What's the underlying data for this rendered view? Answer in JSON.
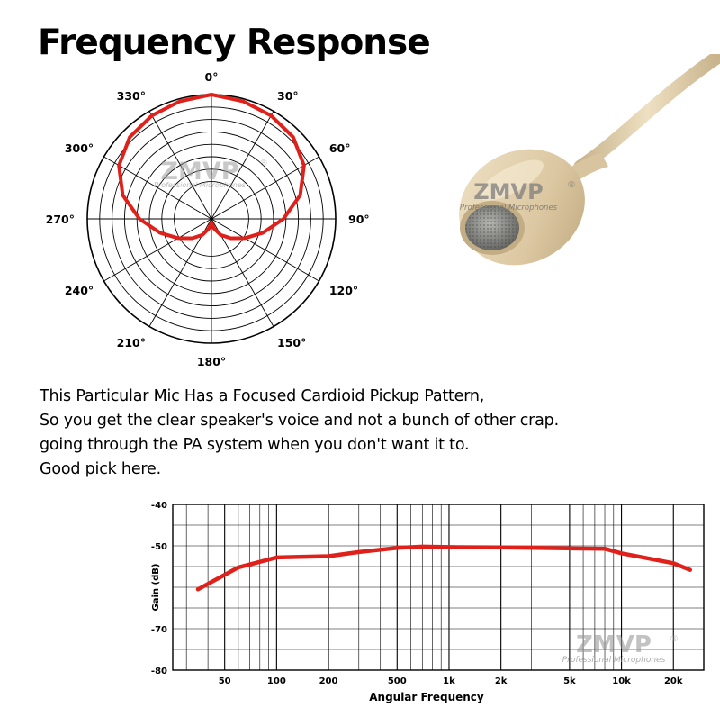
{
  "header": {
    "title": "Frequency Response"
  },
  "description": {
    "lines": [
      "This Particular Mic Has a Focused Cardioid Pickup Pattern,",
      "So you get the clear speaker's voice and not a bunch of other crap.",
      "going through the PA system when you don't want it to.",
      "Good pick here."
    ]
  },
  "watermark": {
    "brand": "ZMVP",
    "mark": "®",
    "tagline": "Professional Microphones"
  },
  "chart_data": [
    {
      "type": "polar",
      "angle_labels": [
        "0°",
        "30°",
        "60°",
        "90°",
        "120°",
        "150°",
        "180°",
        "210°",
        "240°",
        "270°",
        "300°",
        "330°"
      ],
      "series": [
        {
          "angles": [
            0,
            15,
            30,
            45,
            60,
            75,
            90,
            105,
            120,
            135,
            150,
            165,
            180,
            195,
            210,
            225,
            240,
            255,
            270,
            285,
            300,
            315,
            330,
            345
          ],
          "values": [
            1.0,
            0.98,
            0.96,
            0.93,
            0.86,
            0.74,
            0.58,
            0.43,
            0.31,
            0.22,
            0.15,
            0.08,
            0.03,
            0.08,
            0.15,
            0.22,
            0.31,
            0.43,
            0.58,
            0.74,
            0.86,
            0.93,
            0.96,
            0.98
          ]
        }
      ],
      "colors": {
        "curve": "#e0211b",
        "grid": "#000000"
      }
    },
    {
      "type": "line",
      "xlabel": "Angular Frequency",
      "ylabel": "Gain (dB)",
      "xscale": "log",
      "xlim": [
        25,
        30000
      ],
      "ylim": [
        -80,
        -40
      ],
      "x_ticks": [
        50,
        100,
        200,
        500,
        1000,
        2000,
        5000,
        10000,
        20000
      ],
      "x_tick_labels": [
        "50",
        "100",
        "200",
        "500",
        "1k",
        "2k",
        "5k",
        "10k",
        "20k"
      ],
      "y_ticks": [
        -40,
        -50,
        -70,
        -80
      ],
      "y_tick_labels": [
        "-40",
        "-50",
        "-70",
        "-80"
      ],
      "grid": true,
      "series": [
        {
          "x": [
            35,
            60,
            100,
            200,
            300,
            500,
            700,
            1000,
            2000,
            5000,
            8000,
            10000,
            20000,
            25000
          ],
          "y": [
            -60.5,
            -55.2,
            -52.8,
            -52.5,
            -51.5,
            -50.5,
            -50.2,
            -50.3,
            -50.4,
            -50.6,
            -50.7,
            -51.8,
            -54.2,
            -55.8
          ]
        }
      ],
      "colors": {
        "line": "#e0211b",
        "grid": "#000000"
      }
    }
  ],
  "mic": {
    "colors": {
      "body": "#e5d4b2",
      "shade": "#c9b48d",
      "grille": "#8a8a86"
    }
  }
}
